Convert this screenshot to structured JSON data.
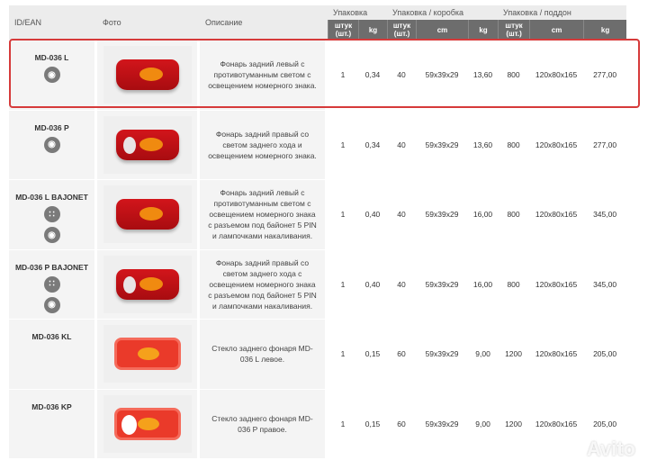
{
  "header": {
    "id": "ID/EAN",
    "photo": "Фото",
    "desc": "Описание",
    "pack": "Упаковка",
    "box": "Упаковка / коробка",
    "pallet": "Упаковка / поддон",
    "pcs": "штук (шт.)",
    "kg": "kg",
    "cm": "cm"
  },
  "rows": [
    {
      "id": "MD-036 L",
      "icons": [
        "bulb-icon"
      ],
      "lamp": "left",
      "desc": "Фонарь задний левый с противотуманным светом с освещением номерного знака.",
      "vals": [
        "1",
        "0,34",
        "40",
        "59x39x29",
        "13,60",
        "800",
        "120x80x165",
        "277,00"
      ]
    },
    {
      "id": "MD-036 P",
      "icons": [
        "bulb-icon"
      ],
      "lamp": "right",
      "desc": "Фонарь задний правый со светом заднего хода и освещением номерного знака.",
      "vals": [
        "1",
        "0,34",
        "40",
        "59x39x29",
        "13,60",
        "800",
        "120x80x165",
        "277,00"
      ]
    },
    {
      "id": "MD-036 L BAJONET",
      "icons": [
        "connector-icon",
        "bulb-icon"
      ],
      "lamp": "left",
      "desc": "Фонарь задний левый с противотуманным светом с освещением номерного знака с разъемом под байонет 5 PIN и лампочками накаливания.",
      "vals": [
        "1",
        "0,40",
        "40",
        "59x39x29",
        "16,00",
        "800",
        "120x80x165",
        "345,00"
      ]
    },
    {
      "id": "MD-036 P BAJONET",
      "icons": [
        "connector-icon",
        "bulb-icon"
      ],
      "lamp": "right",
      "desc": "Фонарь задний правый со светом заднего хода с освещением номерного знака с разъемом под байонет 5 PIN и лампочками накаливания.",
      "vals": [
        "1",
        "0,40",
        "40",
        "59x39x29",
        "16,00",
        "800",
        "120x80x165",
        "345,00"
      ]
    },
    {
      "id": "MD-036 KL",
      "icons": [],
      "lamp": "glass-left",
      "desc": "Стекло заднего фонаря MD-036 L левое.",
      "vals": [
        "1",
        "0,15",
        "60",
        "59x39x29",
        "9,00",
        "1200",
        "120x80x165",
        "205,00"
      ]
    },
    {
      "id": "MD-036 KP",
      "icons": [],
      "lamp": "glass-right",
      "desc": "Стекло заднего фонаря MD-036 P правое.",
      "vals": [
        "1",
        "0,15",
        "60",
        "59x39x29",
        "9,00",
        "1200",
        "120x80x165",
        "205,00"
      ]
    }
  ],
  "watermark": "Avito",
  "highlight_color": "#d63a3a"
}
